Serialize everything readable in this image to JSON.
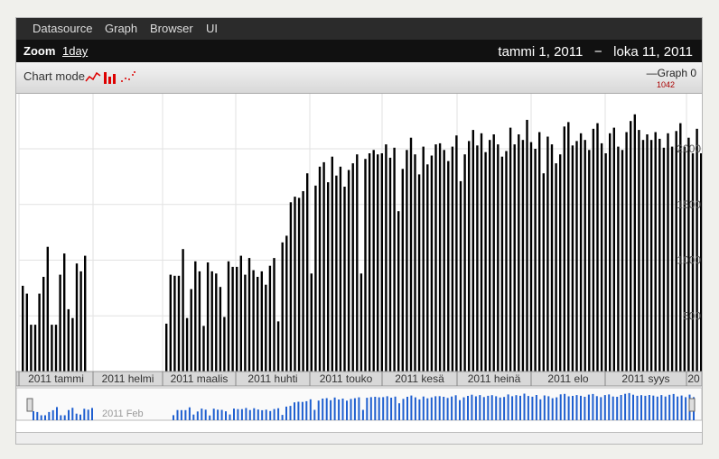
{
  "menu": {
    "items": [
      "Datasource",
      "Graph",
      "Browser",
      "UI"
    ]
  },
  "zoom": {
    "label": "Zoom",
    "value": "1day"
  },
  "date_range": {
    "start": "tammi 1, 2011",
    "separator": "−",
    "end": "loka 11, 2011"
  },
  "chart_mode": {
    "label": "Chart mode",
    "options": [
      "line-mode-icon",
      "bar-mode-icon",
      "scatter-mode-icon"
    ]
  },
  "legend": {
    "name": "Graph 0",
    "value": "1042"
  },
  "colors": {
    "bars": "#000000",
    "overview": "#1f5fd0",
    "menubar": "#2b2b2b"
  },
  "chart_data": {
    "type": "bar",
    "xlim": [
      "2011-01-01",
      "2011-10-11"
    ],
    "ylim": [
      0,
      2300
    ],
    "y_ticks": [
      500,
      1000,
      1500,
      2000
    ],
    "y_tick_labels": [
      "500",
      "1000",
      "1500",
      "2000"
    ],
    "month_labels": [
      "2011 tammi",
      "2011 helmi",
      "2011 maalis",
      "2011 huhti",
      "2011 touko",
      "2011 kesä",
      "2011 heinä",
      "2011 elo",
      "2011 syys",
      "20"
    ],
    "overview_label": "2011 Feb",
    "grid": true,
    "legend_position": "top-right",
    "series": [
      {
        "name": "Graph 0"
      }
    ],
    "values": [
      770,
      700,
      420,
      420,
      700,
      850,
      1120,
      420,
      420,
      870,
      1060,
      560,
      480,
      970,
      900,
      1040,
      430,
      870,
      860,
      860,
      1100,
      480,
      740,
      990,
      900,
      410,
      980,
      900,
      880,
      760,
      490,
      990,
      940,
      940,
      1040,
      870,
      1020,
      910,
      850,
      900,
      780,
      950,
      1020,
      450,
      1160,
      1220,
      1520,
      1570,
      1560,
      1620,
      1780,
      880,
      1670,
      1840,
      1880,
      1700,
      1930,
      1760,
      1840,
      1660,
      1810,
      1870,
      1950,
      880,
      1910,
      1960,
      1990,
      1950,
      1960,
      2040,
      1920,
      2010,
      1440,
      1820,
      1990,
      2100,
      1950,
      1770,
      2020,
      1860,
      1940,
      2040,
      2050,
      1990,
      1890,
      2020,
      2120,
      1710,
      1950,
      2070,
      2170,
      2030,
      2140,
      1970,
      2080,
      2130,
      2040,
      1930,
      1980,
      2190,
      2040,
      2130,
      2080,
      2260,
      2060,
      2000,
      2150,
      1780,
      2110,
      2040,
      1870,
      1950,
      2200,
      2240,
      2030,
      2070,
      2140,
      2080,
      1990,
      2180,
      2230,
      2050,
      1960,
      2140,
      2190,
      2020,
      1990,
      2150,
      2250,
      2310,
      2170,
      2080,
      2130,
      2080,
      2150,
      2090,
      2010,
      2140,
      2020,
      2160,
      2230,
      2020,
      2100,
      1960,
      2180,
      1960
    ]
  }
}
